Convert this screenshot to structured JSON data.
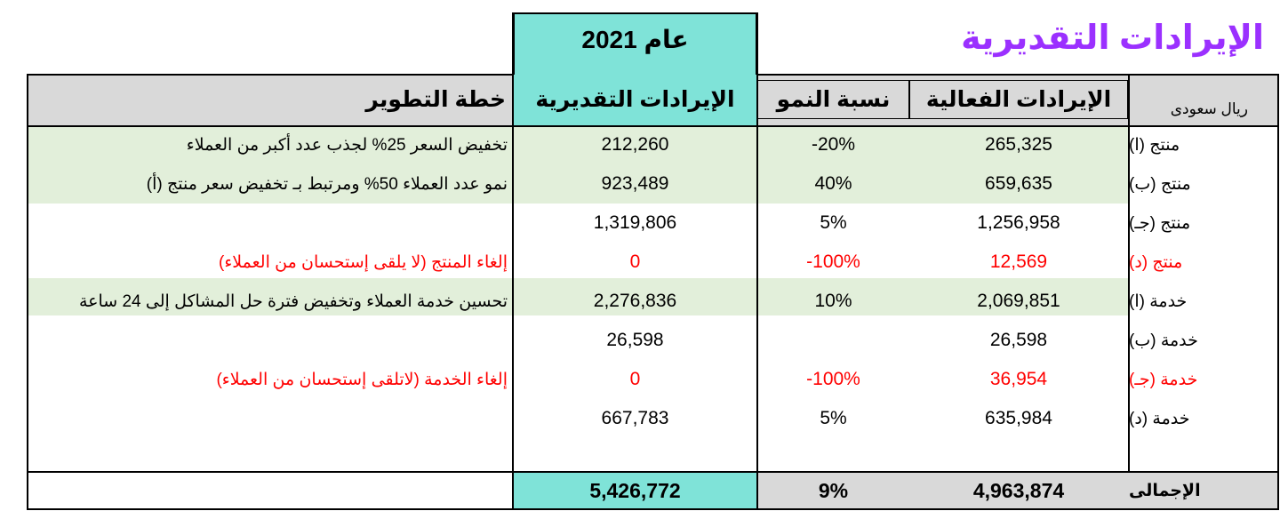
{
  "title": "الإيرادات التقديرية",
  "year_label": "عام 2021",
  "unit": "ريال سعودى",
  "headers": {
    "actual": "الإيرادات الفعالية",
    "growth": "نسبة النمو",
    "estimated": "الإيرادات التقديرية",
    "plan": "خطة التطوير"
  },
  "rows": [
    {
      "label": "منتج (ا)",
      "actual": "265,325",
      "growth": "-20%",
      "estimated": "212,260",
      "plan": "تخفيض السعر 25% لجذب عدد أكبر من العملاء"
    },
    {
      "label": "منتج (ب)",
      "actual": "659,635",
      "growth": "40%",
      "estimated": "923,489",
      "plan": "نمو عدد العملاء 50% ومرتبط بـ تخفيض سعر منتج (أ)"
    },
    {
      "label": "منتج (جـ)",
      "actual": "1,256,958",
      "growth": "5%",
      "estimated": "1,319,806",
      "plan": ""
    },
    {
      "label": "منتج (د)",
      "actual": "12,569",
      "growth": "-100%",
      "estimated": "0",
      "plan": "إلغاء المنتج (لا يلقى إستحسان من العملاء)"
    },
    {
      "label": "خدمة (ا)",
      "actual": "2,069,851",
      "growth": "10%",
      "estimated": "2,276,836",
      "plan": "تحسين خدمة العملاء وتخفيض فترة حل المشاكل إلى 24 ساعة"
    },
    {
      "label": "خدمة (ب)",
      "actual": "26,598",
      "growth": "",
      "estimated": "26,598",
      "plan": ""
    },
    {
      "label": "خدمة (جـ)",
      "actual": "36,954",
      "growth": "-100%",
      "estimated": "0",
      "plan": "إلغاء الخدمة (لاتلقى إستحسان من العملاء)"
    },
    {
      "label": "خدمة (د)",
      "actual": "635,984",
      "growth": "5%",
      "estimated": "667,783",
      "plan": ""
    }
  ],
  "total": {
    "label": "الإجمالى",
    "actual": "4,963,874",
    "growth": "9%",
    "estimated": "5,426,772"
  },
  "colors": {
    "title": "#9b30ff",
    "estimated_fill": "#7fe3d8",
    "header_fill": "#d9d9d9",
    "highlight_fill": "#e2efda",
    "red_text": "#ff0000"
  }
}
